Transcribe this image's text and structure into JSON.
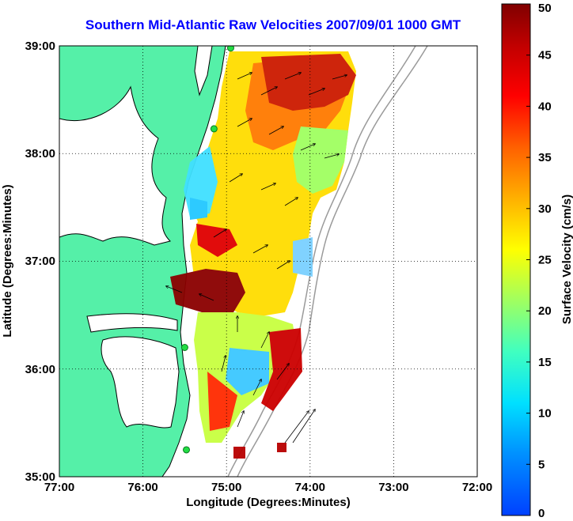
{
  "title": "Southern Mid-Atlantic Raw Velocities 2007/09/01 1000 GMT",
  "xlabel": "Longitude (Degrees:Minutes)",
  "ylabel": "Latitude (Degrees:Minutes)",
  "x_ticks": [
    "77:00",
    "76:00",
    "75:00",
    "74:00",
    "73:00",
    "72:00"
  ],
  "y_ticks": [
    "39:00",
    "38:00",
    "37:00",
    "36:00",
    "35:00"
  ],
  "colorbar": {
    "label": "Surface Velocity (cm/s)",
    "ticks": [
      "0",
      "5",
      "10",
      "15",
      "20",
      "25",
      "30",
      "35",
      "40",
      "45",
      "50"
    ],
    "min": 0,
    "max": 50
  },
  "colors": {
    "title": "#0000ff",
    "land": "#55f0a8",
    "coastline": "#000000",
    "bathymetry": "#9a9a9a",
    "station": "#22dd44"
  },
  "stations": [
    {
      "lon": -74.95,
      "lat": 38.98
    },
    {
      "lon": -75.15,
      "lat": 38.23
    },
    {
      "lon": -75.5,
      "lat": 36.2
    },
    {
      "lon": -75.48,
      "lat": 35.25
    }
  ]
}
